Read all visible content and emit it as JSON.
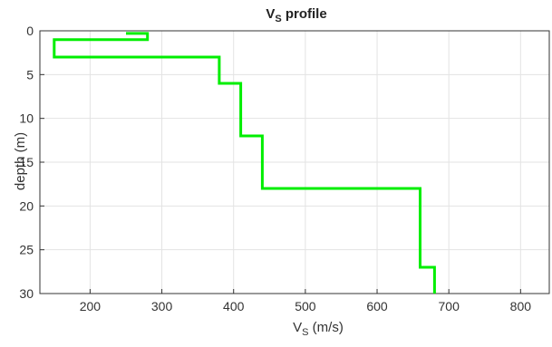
{
  "chart_data": {
    "type": "line",
    "title": {
      "main": "V",
      "sub": "S",
      "rest": " profile"
    },
    "xlabel": {
      "main": "V",
      "sub": "S",
      "rest": " (m/s)"
    },
    "ylabel": "depth (m)",
    "xlim": [
      130,
      840
    ],
    "ylim": [
      0,
      30
    ],
    "y_reversed": true,
    "x_ticks": [
      200,
      300,
      400,
      500,
      600,
      700,
      800
    ],
    "y_ticks": [
      0,
      5,
      10,
      15,
      20,
      25,
      30
    ],
    "grid": true,
    "series": [
      {
        "color": "#00ee00",
        "points": [
          [
            250,
            0.3
          ],
          [
            280,
            0.3
          ],
          [
            280,
            1
          ],
          [
            150,
            1
          ],
          [
            150,
            3
          ],
          [
            380,
            3
          ],
          [
            380,
            6
          ],
          [
            410,
            6
          ],
          [
            410,
            12
          ],
          [
            440,
            12
          ],
          [
            440,
            18
          ],
          [
            660,
            18
          ],
          [
            660,
            27
          ],
          [
            680,
            27
          ],
          [
            680,
            30
          ]
        ]
      }
    ]
  }
}
